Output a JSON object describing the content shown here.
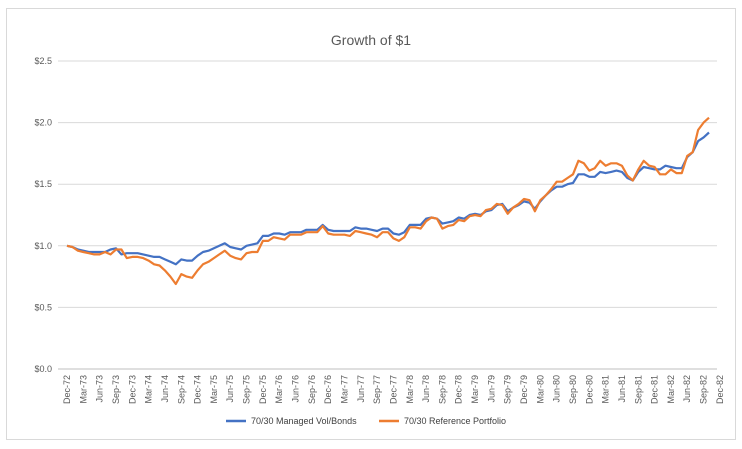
{
  "chart_data": {
    "type": "line",
    "title": "Growth of $1",
    "xlabel": "",
    "ylabel": "",
    "ylim": [
      0,
      2.5
    ],
    "yticks": [
      0.0,
      0.5,
      1.0,
      1.5,
      2.0,
      2.5
    ],
    "ytick_labels": [
      "$0.0",
      "$0.5",
      "$1.0",
      "$1.5",
      "$2.0",
      "$2.5"
    ],
    "x_tick_labels": [
      "Dec-72",
      "Mar-73",
      "Jun-73",
      "Sep-73",
      "Dec-73",
      "Mar-74",
      "Jun-74",
      "Sep-74",
      "Dec-74",
      "Mar-75",
      "Jun-75",
      "Sep-75",
      "Dec-75",
      "Mar-76",
      "Jun-76",
      "Sep-76",
      "Dec-76",
      "Mar-77",
      "Jun-77",
      "Sep-77",
      "Dec-77",
      "Mar-78",
      "Jun-78",
      "Sep-78",
      "Dec-78",
      "Mar-79",
      "Jun-79",
      "Sep-79",
      "Dec-79",
      "Mar-80",
      "Jun-80",
      "Sep-80",
      "Dec-80",
      "Mar-81",
      "Jun-81",
      "Sep-81",
      "Dec-81",
      "Mar-82",
      "Jun-82",
      "Sep-82",
      "Dec-82"
    ],
    "grid": true,
    "legend_position": "bottom",
    "series": [
      {
        "name": "70/30 Managed Vol/Bonds",
        "color": "#4472c4",
        "values": [
          1.0,
          0.99,
          0.97,
          0.96,
          0.95,
          0.95,
          0.95,
          0.95,
          0.97,
          0.98,
          0.93,
          0.94,
          0.94,
          0.94,
          0.93,
          0.92,
          0.91,
          0.91,
          0.89,
          0.87,
          0.85,
          0.89,
          0.88,
          0.88,
          0.92,
          0.95,
          0.96,
          0.98,
          1.0,
          1.02,
          0.99,
          0.98,
          0.97,
          1.0,
          1.01,
          1.02,
          1.08,
          1.08,
          1.1,
          1.1,
          1.09,
          1.11,
          1.11,
          1.11,
          1.13,
          1.13,
          1.13,
          1.17,
          1.13,
          1.12,
          1.12,
          1.12,
          1.12,
          1.15,
          1.14,
          1.14,
          1.13,
          1.12,
          1.14,
          1.14,
          1.1,
          1.09,
          1.11,
          1.17,
          1.17,
          1.17,
          1.22,
          1.23,
          1.22,
          1.18,
          1.19,
          1.2,
          1.23,
          1.22,
          1.25,
          1.26,
          1.25,
          1.28,
          1.29,
          1.33,
          1.34,
          1.28,
          1.31,
          1.33,
          1.36,
          1.35,
          1.3,
          1.36,
          1.41,
          1.45,
          1.48,
          1.48,
          1.5,
          1.51,
          1.58,
          1.58,
          1.56,
          1.56,
          1.6,
          1.59,
          1.6,
          1.61,
          1.6,
          1.55,
          1.53,
          1.6,
          1.64,
          1.63,
          1.62,
          1.62,
          1.65,
          1.64,
          1.63,
          1.63,
          1.72,
          1.76,
          1.85,
          1.88,
          1.92
        ]
      },
      {
        "name": "70/30 Reference Portfolio",
        "color": "#ed7d31",
        "values": [
          1.0,
          0.99,
          0.96,
          0.95,
          0.94,
          0.93,
          0.93,
          0.95,
          0.93,
          0.97,
          0.97,
          0.9,
          0.91,
          0.91,
          0.9,
          0.88,
          0.85,
          0.84,
          0.8,
          0.75,
          0.69,
          0.77,
          0.75,
          0.74,
          0.8,
          0.85,
          0.87,
          0.9,
          0.93,
          0.96,
          0.92,
          0.9,
          0.89,
          0.94,
          0.95,
          0.95,
          1.04,
          1.04,
          1.07,
          1.06,
          1.05,
          1.09,
          1.09,
          1.09,
          1.11,
          1.11,
          1.11,
          1.16,
          1.1,
          1.09,
          1.09,
          1.09,
          1.08,
          1.12,
          1.11,
          1.1,
          1.09,
          1.07,
          1.11,
          1.11,
          1.06,
          1.04,
          1.07,
          1.15,
          1.15,
          1.14,
          1.2,
          1.23,
          1.22,
          1.14,
          1.16,
          1.17,
          1.21,
          1.2,
          1.24,
          1.25,
          1.24,
          1.29,
          1.3,
          1.34,
          1.33,
          1.26,
          1.31,
          1.34,
          1.38,
          1.37,
          1.28,
          1.37,
          1.41,
          1.46,
          1.52,
          1.52,
          1.55,
          1.58,
          1.69,
          1.67,
          1.61,
          1.63,
          1.69,
          1.65,
          1.67,
          1.67,
          1.65,
          1.57,
          1.53,
          1.62,
          1.69,
          1.65,
          1.64,
          1.58,
          1.58,
          1.62,
          1.59,
          1.59,
          1.73,
          1.76,
          1.94,
          2.0,
          2.04
        ]
      }
    ]
  }
}
